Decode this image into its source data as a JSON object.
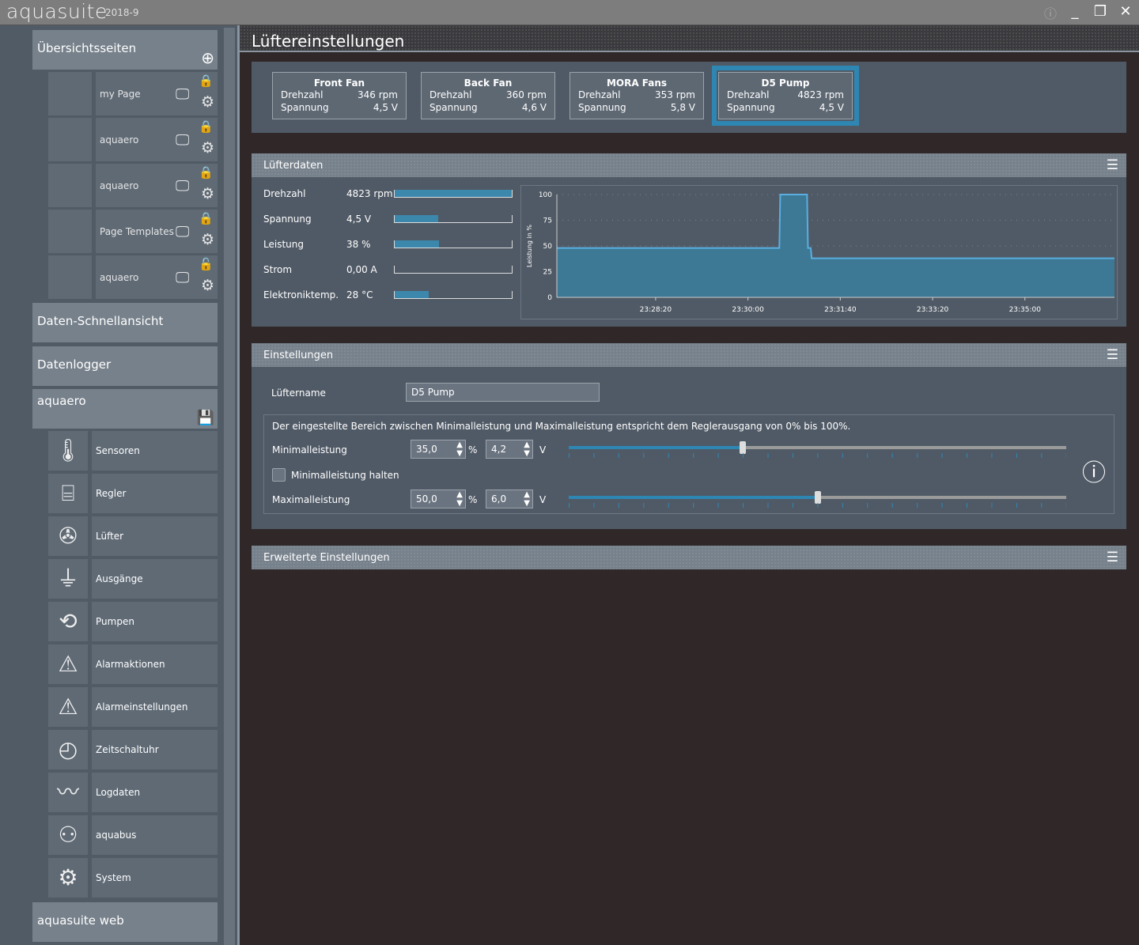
{
  "app": {
    "name": "aquasuite",
    "version": "2018-9"
  },
  "window": {
    "info_icon": "info-icon",
    "minimize": "_",
    "restore": "❐",
    "close": "✕"
  },
  "sidebar": {
    "overview_title": "Übersichtsseiten",
    "pages": [
      {
        "label": "my Page",
        "locked": true
      },
      {
        "label": "aquaero",
        "locked": true
      },
      {
        "label": "aquaero",
        "locked": true
      },
      {
        "label": "Page Templates",
        "locked": true
      },
      {
        "label": "aquaero",
        "locked": false
      }
    ],
    "quickview": "Daten-Schnellansicht",
    "datalogger": "Datenlogger",
    "device": "aquaero",
    "device_items": [
      {
        "label": "Sensoren",
        "icon": "thermometer-icon",
        "glyph": "🌡"
      },
      {
        "label": "Regler",
        "icon": "controller-icon",
        "glyph": "⌸"
      },
      {
        "label": "Lüfter",
        "icon": "fan-icon",
        "glyph": "✇"
      },
      {
        "label": "Ausgänge",
        "icon": "plug-icon",
        "glyph": "⏚"
      },
      {
        "label": "Pumpen",
        "icon": "pump-icon",
        "glyph": "⟲"
      },
      {
        "label": "Alarmaktionen",
        "icon": "alarm-actions-icon",
        "glyph": "⚠"
      },
      {
        "label": "Alarmeinstellungen",
        "icon": "alarm-settings-icon",
        "glyph": "⚠"
      },
      {
        "label": "Zeitschaltuhr",
        "icon": "clock-icon",
        "glyph": "◴"
      },
      {
        "label": "Logdaten",
        "icon": "log-chart-icon",
        "glyph": "〰"
      },
      {
        "label": "aquabus",
        "icon": "network-icon",
        "glyph": "⚇"
      },
      {
        "label": "System",
        "icon": "system-gear-icon",
        "glyph": "⚙"
      }
    ],
    "web": "aquasuite web"
  },
  "page_title": "Lüftereinstellungen",
  "fans": [
    {
      "name": "Front Fan",
      "speed_label": "Drehzahl",
      "speed": "346 rpm",
      "voltage_label": "Spannung",
      "voltage": "4,5 V"
    },
    {
      "name": "Back Fan",
      "speed_label": "Drehzahl",
      "speed": "360 rpm",
      "voltage_label": "Spannung",
      "voltage": "4,6 V"
    },
    {
      "name": "MORA Fans",
      "speed_label": "Drehzahl",
      "speed": "353 rpm",
      "voltage_label": "Spannung",
      "voltage": "5,8 V"
    },
    {
      "name": "D5 Pump",
      "speed_label": "Drehzahl",
      "speed": "4823 rpm",
      "voltage_label": "Spannung",
      "voltage": "4,5 V",
      "selected": true
    }
  ],
  "fan_data": {
    "title": "Lüfterdaten",
    "rows": [
      {
        "label": "Drehzahl",
        "value": "4823 rpm",
        "fill": 1.0
      },
      {
        "label": "Spannung",
        "value": "4,5 V",
        "fill": 0.37
      },
      {
        "label": "Leistung",
        "value": "38 %",
        "fill": 0.38
      },
      {
        "label": "Strom",
        "value": "0,00 A",
        "fill": 0
      },
      {
        "label": "Elektroniktemp.",
        "value": "28 °C",
        "fill": 0.29
      }
    ]
  },
  "chart_data": {
    "type": "area",
    "ylabel": "Leistung in %",
    "ylim": [
      0,
      100
    ],
    "yticks": [
      "0",
      "25",
      "50",
      "75",
      "100"
    ],
    "xlim": [
      "23:26:33",
      "23:36:37"
    ],
    "xticks": [
      "23:28:20",
      "23:30:00",
      "23:31:40",
      "23:33:20",
      "23:35:00"
    ],
    "grid": true,
    "x": [
      "23:26:33",
      "23:30:34",
      "23:30:35",
      "23:31:04",
      "23:31:05",
      "23:31:08",
      "23:31:09",
      "23:36:37"
    ],
    "y": [
      48,
      48,
      100,
      100,
      48,
      48,
      38,
      38
    ],
    "color": "#5aaee0"
  },
  "settings": {
    "title": "Einstellungen",
    "name_label": "Lüftername",
    "name_value": "D5 Pump",
    "description": "Der eingestellte Bereich zwischen Minimalleistung und Maximalleistung entspricht dem Reglerausgang von 0% bis 100%.",
    "min_label": "Minimalleistung",
    "min_percent": "35,0",
    "min_voltage": "4,2",
    "min_slider": 35,
    "hold_label": "Minimalleistung halten",
    "hold_checked": false,
    "max_label": "Maximalleistung",
    "max_percent": "50,0",
    "max_voltage": "6,0",
    "max_slider": 50,
    "unit_percent": "%",
    "unit_volt": "V"
  },
  "advanced": {
    "title": "Erweiterte Einstellungen"
  },
  "colors": {
    "accent": "#2e86b3",
    "panel": "#505a66",
    "header": "#77818b",
    "background": "#302828",
    "unlocked": "#f0a020"
  }
}
